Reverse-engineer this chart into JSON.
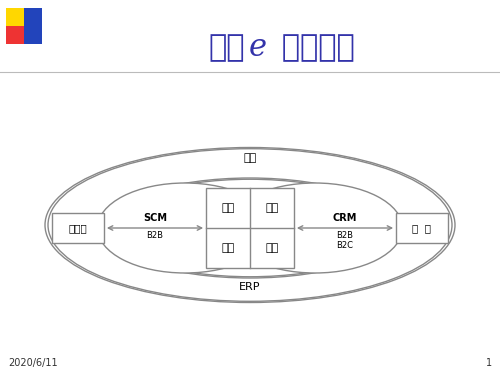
{
  "title_part1": "企业",
  "title_italic": "e",
  "title_part2": " 化的蓝图",
  "title_color": "#3333AA",
  "bg_color": "#FFFFFF",
  "slide_date": "2020/6/11",
  "slide_number": "1",
  "gov_label": "政府",
  "erp_label": "ERP",
  "scm_label": "SCM",
  "scm_sub": "B2B",
  "crm_label": "CRM",
  "crm_sub1": "B2B",
  "crm_sub2": "B2C",
  "supplier_label": "供应商",
  "customer_label": "顾  客",
  "purchase_label": "采购",
  "sales_label": "营销",
  "rd_label": "研发",
  "production_label": "生产",
  "line_color": "#888888",
  "box_facecolor": "#FFFFFF",
  "deco_yellow": "#FFD700",
  "deco_red": "#EE3333",
  "deco_blue": "#2244BB"
}
